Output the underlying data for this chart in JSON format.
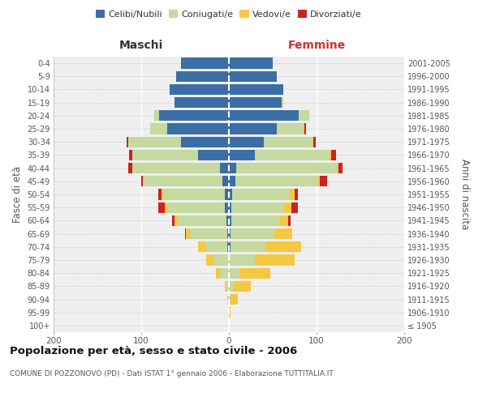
{
  "age_groups": [
    "100+",
    "95-99",
    "90-94",
    "85-89",
    "80-84",
    "75-79",
    "70-74",
    "65-69",
    "60-64",
    "55-59",
    "50-54",
    "45-49",
    "40-44",
    "35-39",
    "30-34",
    "25-29",
    "20-24",
    "15-19",
    "10-14",
    "5-9",
    "0-4"
  ],
  "birth_years": [
    "≤ 1905",
    "1906-1910",
    "1911-1915",
    "1916-1920",
    "1921-1925",
    "1926-1930",
    "1931-1935",
    "1936-1940",
    "1941-1945",
    "1946-1950",
    "1951-1955",
    "1956-1960",
    "1961-1965",
    "1966-1970",
    "1971-1975",
    "1976-1980",
    "1981-1985",
    "1986-1990",
    "1991-1995",
    "1996-2000",
    "2001-2005"
  ],
  "males": {
    "celibe": [
      0,
      0,
      0,
      0,
      0,
      0,
      2,
      2,
      3,
      5,
      5,
      7,
      10,
      35,
      55,
      70,
      80,
      62,
      68,
      60,
      55
    ],
    "coniugato": [
      0,
      0,
      2,
      3,
      10,
      18,
      25,
      42,
      55,
      65,
      70,
      90,
      100,
      75,
      60,
      20,
      5,
      0,
      0,
      0,
      0
    ],
    "vedovo": [
      0,
      0,
      0,
      2,
      5,
      8,
      8,
      5,
      4,
      3,
      2,
      1,
      0,
      0,
      0,
      0,
      0,
      0,
      0,
      0,
      0
    ],
    "divorziato": [
      0,
      0,
      0,
      0,
      0,
      0,
      0,
      1,
      3,
      8,
      4,
      2,
      5,
      4,
      2,
      0,
      0,
      0,
      0,
      0,
      0
    ]
  },
  "females": {
    "nubile": [
      0,
      0,
      0,
      0,
      0,
      0,
      2,
      2,
      3,
      3,
      4,
      7,
      8,
      30,
      40,
      55,
      80,
      60,
      62,
      55,
      50
    ],
    "coniugata": [
      0,
      0,
      2,
      5,
      12,
      30,
      40,
      50,
      55,
      60,
      65,
      95,
      115,
      85,
      55,
      30,
      12,
      2,
      0,
      0,
      0
    ],
    "vedova": [
      0,
      2,
      8,
      20,
      35,
      45,
      40,
      20,
      10,
      8,
      6,
      2,
      2,
      2,
      1,
      1,
      0,
      0,
      0,
      0,
      0
    ],
    "divorziata": [
      0,
      0,
      0,
      0,
      0,
      0,
      0,
      0,
      2,
      8,
      4,
      8,
      5,
      5,
      3,
      2,
      0,
      0,
      0,
      0,
      0
    ]
  },
  "color_celibe": "#3b6ea5",
  "color_coniugato": "#c5d9a0",
  "color_vedovo": "#f5c842",
  "color_divorziato": "#cc2222",
  "xlim": 200,
  "title": "Popolazione per età, sesso e stato civile - 2006",
  "subtitle": "COMUNE DI POZZONOVO (PD) - Dati ISTAT 1° gennaio 2006 - Elaborazione TUTTITALIA.IT",
  "xlabel_left": "Maschi",
  "xlabel_right": "Femmine",
  "ylabel_left": "Fasce di età",
  "ylabel_right": "Anni di nascita",
  "background_color": "#ffffff",
  "ax_bg": "#efefef"
}
